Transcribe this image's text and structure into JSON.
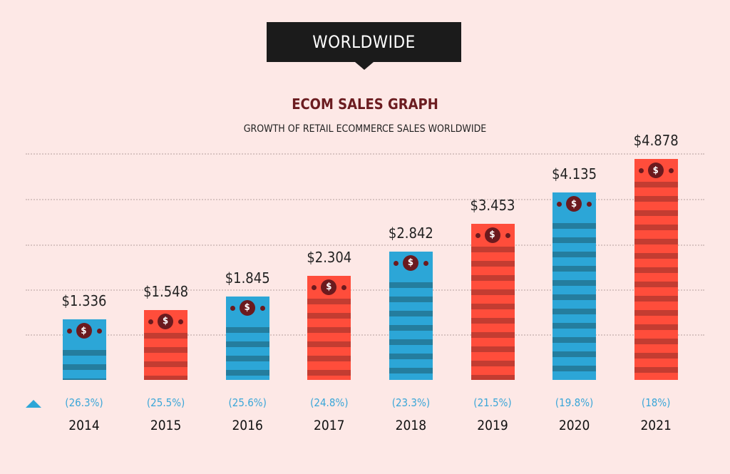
{
  "header": {
    "badge": "WORLDWIDE"
  },
  "chart_data": {
    "type": "bar",
    "title": "ECOM SALES GRAPH",
    "subtitle": "GROWTH OF RETAIL ECOMMERCE SALES WORLDWIDE",
    "categories": [
      "2014",
      "2015",
      "2016",
      "2017",
      "2018",
      "2019",
      "2020",
      "2021"
    ],
    "values": [
      1.336,
      1.548,
      1.845,
      2.304,
      2.842,
      3.453,
      4.135,
      4.878
    ],
    "value_labels": [
      "$1.336",
      "$1.548",
      "$1.845",
      "$2.304",
      "$2.842",
      "$3.453",
      "$4.135",
      "$4.878"
    ],
    "growth_labels": [
      "(26.3%)",
      "(25.5%)",
      "(25.6%)",
      "(24.8%)",
      "(23.3%)",
      "(21.5%)",
      "(19.8%)",
      "(18%)"
    ],
    "bar_colors": [
      "#2ca6d7",
      "#ff4d3b",
      "#2ca6d7",
      "#ff4d3b",
      "#2ca6d7",
      "#ff4d3b",
      "#2ca6d7",
      "#ff4d3b"
    ],
    "ylim": [
      0,
      5
    ],
    "grid": true,
    "icon": "dollar-coin-icon",
    "growth_marker_icon": "triangle-up-icon"
  }
}
